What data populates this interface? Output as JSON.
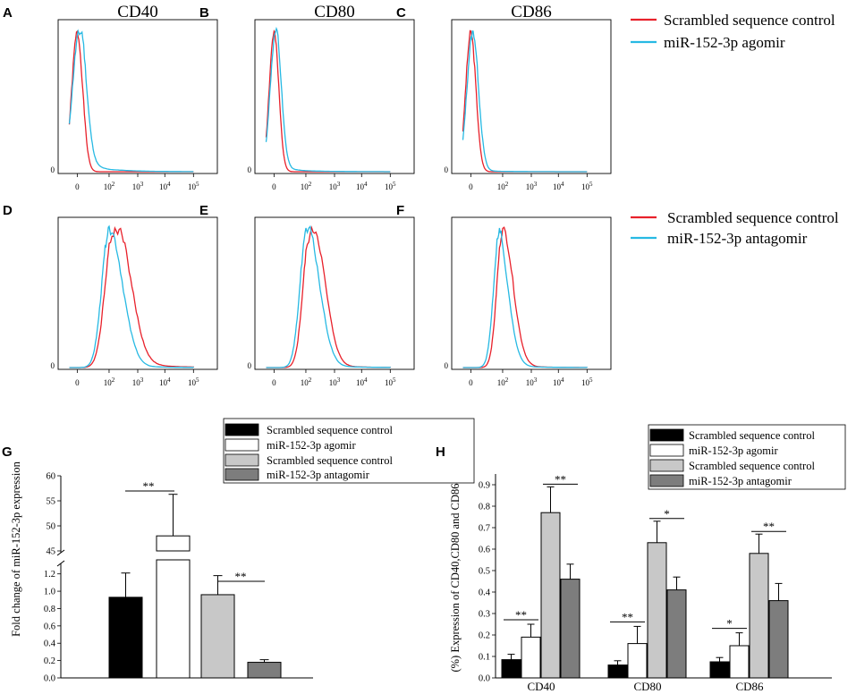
{
  "colors": {
    "control": "#e8212b",
    "treatment": "#27b9e3",
    "black": "#000000",
    "white": "#ffffff",
    "light_gray": "#c8c8c8",
    "dark_gray": "#7d7d7d"
  },
  "histograms": {
    "x_tick_labels": [
      "0",
      "10",
      "10",
      "10",
      "10",
      "10"
    ],
    "x_tick_exponents": [
      "",
      "2",
      "3",
      "4",
      "5",
      ""
    ],
    "y_zero_label": "0",
    "panels": [
      {
        "letter": "A",
        "title": "CD40",
        "control_mode": 0,
        "control_width": 0.34,
        "control_tail": 0.0,
        "treatment_mode": 0.12,
        "treatment_width": 0.42,
        "treatment_tail": 0.14
      },
      {
        "letter": "B",
        "title": "CD80",
        "control_mode": 0,
        "control_width": 0.3,
        "control_tail": 0.0,
        "treatment_mode": 0.1,
        "treatment_width": 0.34,
        "treatment_tail": 0.06
      },
      {
        "letter": "C",
        "title": "CD86",
        "control_mode": 0,
        "control_width": 0.32,
        "control_tail": 0.0,
        "treatment_mode": 0.12,
        "treatment_width": 0.36,
        "treatment_tail": 0.02
      },
      {
        "letter": "D",
        "title": "",
        "control_mode": 2.25,
        "control_width": 0.5,
        "control_tail": 0.08,
        "treatment_mode": 2.0,
        "treatment_width": 0.46,
        "treatment_tail": 0.03
      },
      {
        "letter": "E",
        "title": "",
        "control_mode": 2.25,
        "control_width": 0.42,
        "control_tail": 0.03,
        "treatment_mode": 2.05,
        "treatment_width": 0.42,
        "treatment_tail": 0.03
      },
      {
        "letter": "F",
        "title": "",
        "control_mode": 2.0,
        "control_width": 0.36,
        "control_tail": 0.02,
        "treatment_mode": 1.8,
        "treatment_width": 0.36,
        "treatment_tail": 0.02
      }
    ],
    "legend_top": [
      "Scrambled sequence control",
      "miR-152-3p agomir"
    ],
    "legend_bottom": [
      "Scrambled sequence control",
      "miR-152-3p antagomir"
    ]
  },
  "chart_data": [
    {
      "type": "bar",
      "letter": "G",
      "ylabel": "Fold change of miR-152-3p expression",
      "series": [
        {
          "name": "Scrambled sequence control",
          "value": 0.93,
          "error": 0.28,
          "color": "#000000"
        },
        {
          "name": "miR-152-3p agomir",
          "value": 48.0,
          "error": 8.3,
          "color": "#ffffff"
        },
        {
          "name": "Scrambled sequence control",
          "value": 0.96,
          "error": 0.22,
          "color": "#c8c8c8"
        },
        {
          "name": "miR-152-3p antagomir",
          "value": 0.18,
          "error": 0.03,
          "color": "#7d7d7d"
        }
      ],
      "y_lower_ticks": [
        "0.0",
        "0.2",
        "0.4",
        "0.6",
        "0.8",
        "1.0",
        "1.2"
      ],
      "y_upper_ticks": [
        "45",
        "50",
        "55",
        "60"
      ],
      "ylim_lower": [
        0,
        1.3
      ],
      "ylim_upper": [
        45,
        60
      ],
      "significance": [
        "**",
        "**"
      ]
    },
    {
      "type": "bar",
      "letter": "H",
      "ylabel": "(%) Expression of CD40,CD80 and CD86",
      "categories": [
        "CD40",
        "CD80",
        "CD86"
      ],
      "series": [
        {
          "name": "Scrambled sequence control",
          "values": [
            0.085,
            0.06,
            0.075
          ],
          "errors": [
            0.025,
            0.02,
            0.02
          ],
          "color": "#000000"
        },
        {
          "name": "miR-152-3p agomir",
          "values": [
            0.19,
            0.16,
            0.15
          ],
          "errors": [
            0.06,
            0.08,
            0.06
          ],
          "color": "#ffffff"
        },
        {
          "name": "Scrambled sequence control",
          "values": [
            0.77,
            0.63,
            0.58
          ],
          "errors": [
            0.12,
            0.1,
            0.09
          ],
          "color": "#c8c8c8"
        },
        {
          "name": "miR-152-3p antagomir",
          "values": [
            0.46,
            0.41,
            0.36
          ],
          "errors": [
            0.07,
            0.06,
            0.08
          ],
          "color": "#7d7d7d"
        }
      ],
      "y_ticks": [
        "0.0",
        "0.1",
        "0.2",
        "0.3",
        "0.4",
        "0.5",
        "0.6",
        "0.7",
        "0.8",
        "0.9"
      ],
      "ylim": [
        0,
        0.95
      ],
      "significance": [
        [
          "**",
          "**"
        ],
        [
          "**",
          "*"
        ],
        [
          "*",
          "**"
        ]
      ]
    }
  ]
}
